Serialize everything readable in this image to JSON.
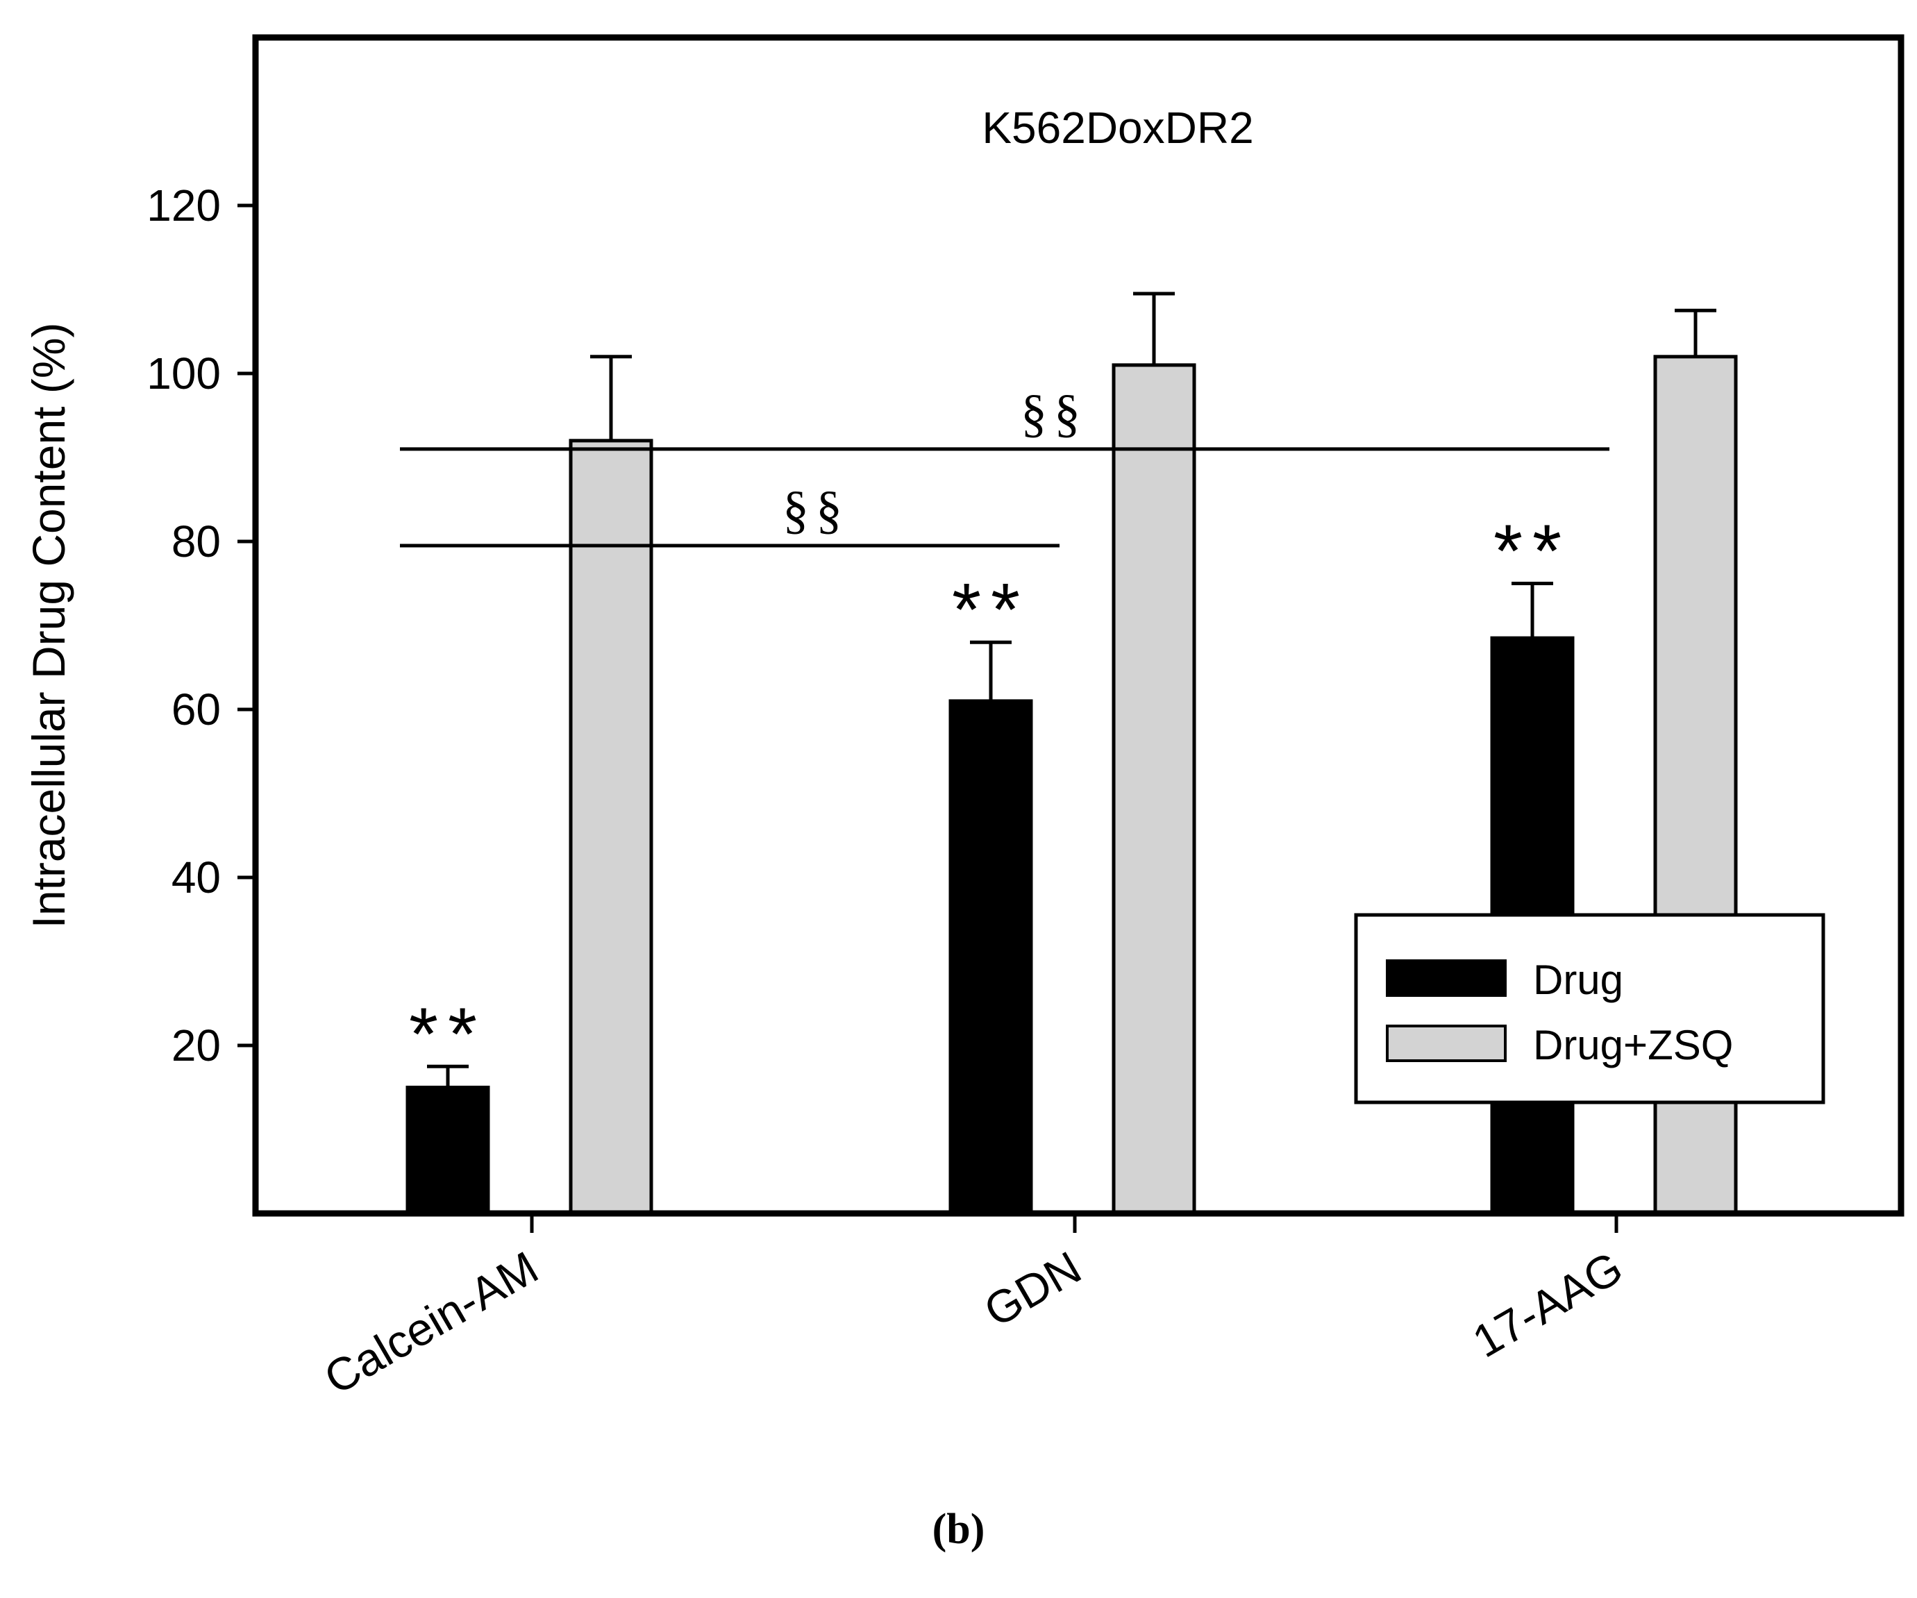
{
  "chart_data": {
    "type": "bar",
    "title": "K562DoxDR2",
    "xlabel": "",
    "ylabel": "Intracellular Drug Content (%)",
    "ylim": [
      0,
      140
    ],
    "yticks": [
      20,
      40,
      60,
      80,
      100,
      120
    ],
    "categories": [
      "Calcein-AM",
      "GDN",
      "17-AAG"
    ],
    "series": [
      {
        "name": "Drug",
        "color": "#000000",
        "values": [
          15,
          61,
          68.5
        ],
        "errors": [
          2.5,
          7,
          6.5
        ]
      },
      {
        "name": "Drug+ZSQ",
        "color": "#d3d3d3",
        "values": [
          92,
          101,
          102
        ],
        "errors": [
          10,
          8.5,
          5.5
        ]
      }
    ],
    "annotations": [
      {
        "category_index": 0,
        "series_index": 0,
        "text": "**"
      },
      {
        "category_index": 1,
        "series_index": 0,
        "text": "**"
      },
      {
        "category_index": 2,
        "series_index": 0,
        "text": "**"
      }
    ],
    "comparisons": [
      {
        "from": 0,
        "to": 1,
        "y": 79.5,
        "text": "§§"
      },
      {
        "from": 0,
        "to": 2,
        "y": 91,
        "text": "§§"
      }
    ],
    "legend": {
      "position": "bottom-right",
      "entries": [
        "Drug",
        "Drug+ZSQ"
      ]
    },
    "grid": false
  },
  "panel_label": "(b)"
}
